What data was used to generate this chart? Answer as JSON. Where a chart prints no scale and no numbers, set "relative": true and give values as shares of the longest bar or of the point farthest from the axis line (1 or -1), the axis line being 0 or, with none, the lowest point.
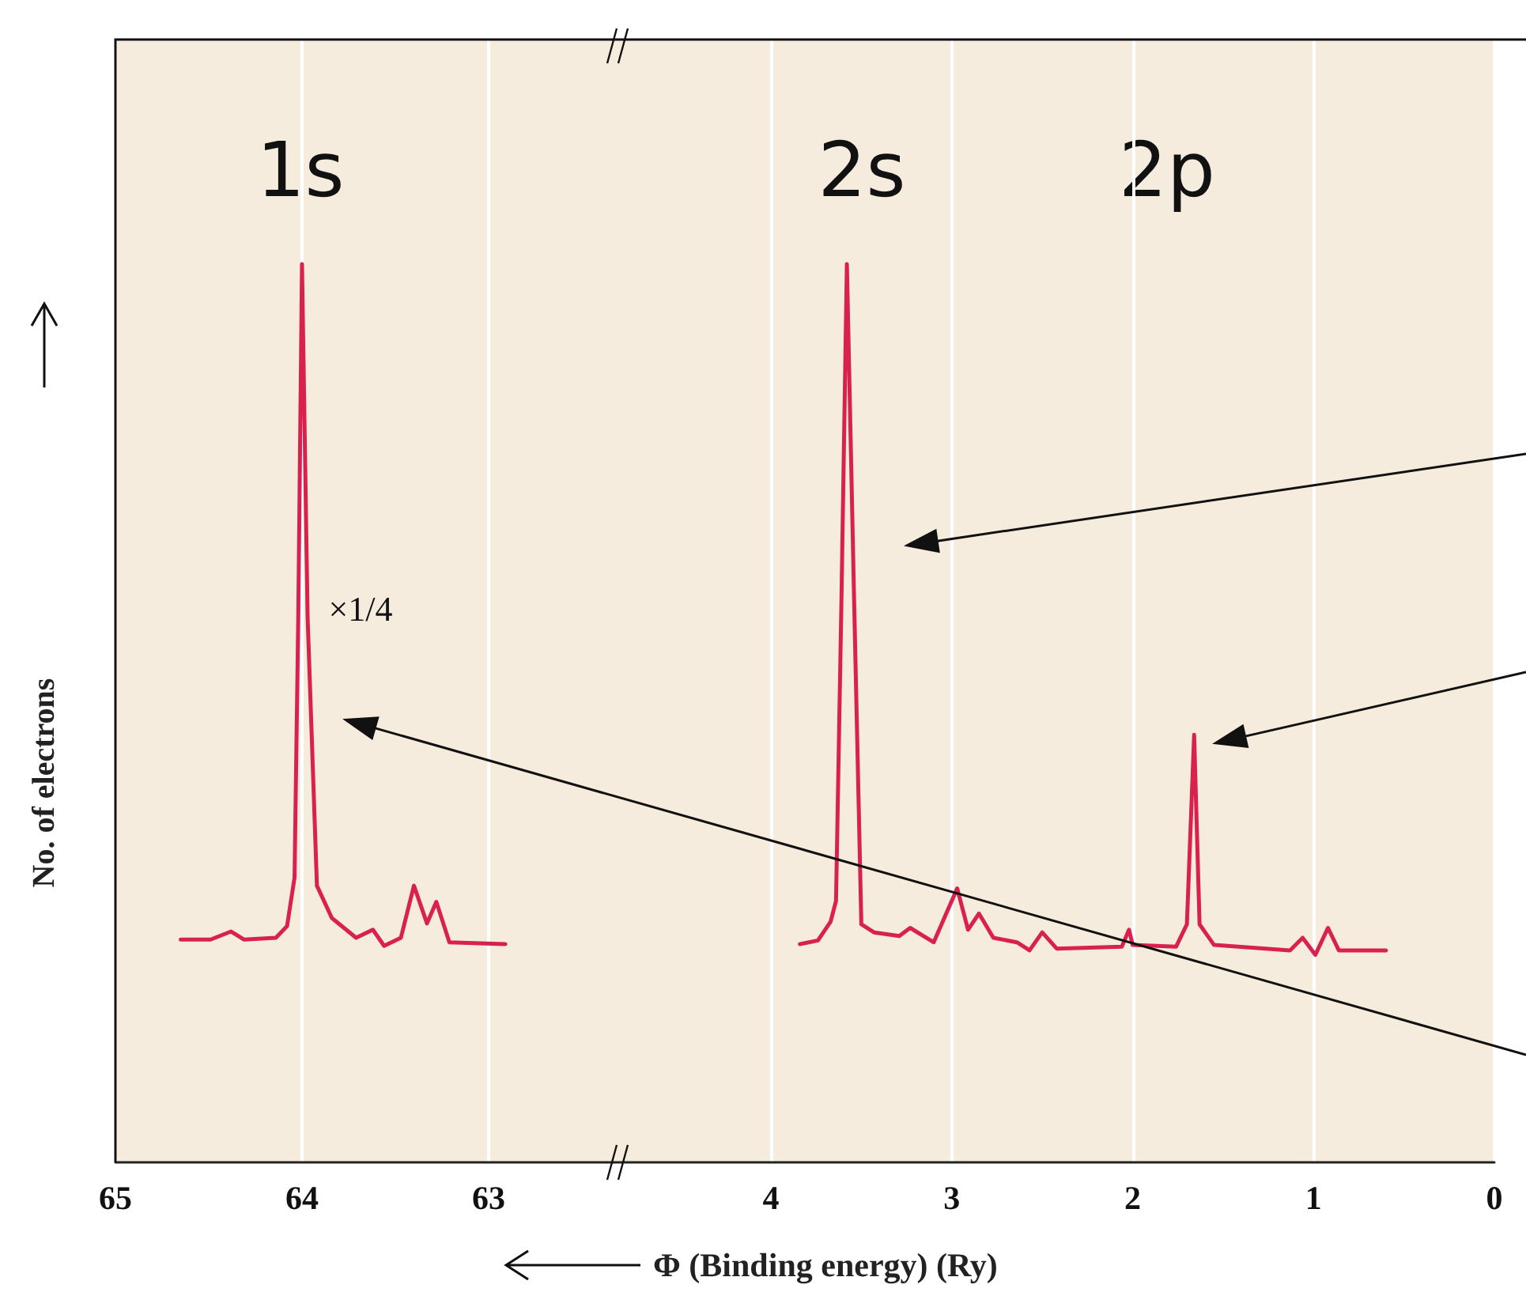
{
  "chart_data": [
    {
      "type": "line",
      "relative": true,
      "ylabel": "No. of electrons",
      "xlim": [
        65,
        62.33
      ],
      "xticks": [
        65,
        64,
        63
      ],
      "grid": "x",
      "tick_labels": "x",
      "annotations": [
        "1s",
        "×1/4"
      ],
      "series": [
        {
          "color": "#d92150",
          "x": [
            64.65,
            64.49,
            64.38,
            64.31,
            64.14,
            64.08,
            64.04,
            64.02,
            64.0,
            63.97,
            63.92,
            63.84,
            63.71,
            63.62,
            63.56,
            63.47,
            63.4,
            63.33,
            63.28,
            63.21,
            62.91
          ],
          "values": [
            0.248,
            0.248,
            0.257,
            0.248,
            0.25,
            0.263,
            0.317,
            0.607,
            1,
            0.607,
            0.308,
            0.272,
            0.25,
            0.259,
            0.241,
            0.25,
            0.308,
            0.266,
            0.29,
            0.245,
            0.243
          ]
        }
      ]
    },
    {
      "type": "line",
      "relative": true,
      "xlabel": "Φ (Binding energy) (Ry)",
      "xlim": [
        4.87,
        0
      ],
      "xticks": [
        4,
        3,
        2,
        1,
        0
      ],
      "grid": "x",
      "tick_labels": "x",
      "annotations": [
        "2s",
        "2p"
      ],
      "series": [
        {
          "color": "#d92150",
          "x": [
            3.84,
            3.74,
            3.67,
            3.64,
            3.61,
            3.58,
            3.54,
            3.5,
            3.43,
            3.29,
            3.23,
            3.1,
            2.97,
            2.91,
            2.85,
            2.77,
            2.64,
            2.57,
            2.5,
            2.42,
            2.06,
            2.02,
            2.0,
            1.76,
            1.7,
            1.66,
            1.63,
            1.55,
            1.13,
            1.06,
            0.99,
            0.92,
            0.86,
            0.6
          ],
          "values": [
            0.243,
            0.247,
            0.268,
            0.291,
            0.626,
            1,
            0.626,
            0.265,
            0.256,
            0.252,
            0.261,
            0.245,
            0.305,
            0.259,
            0.277,
            0.25,
            0.245,
            0.236,
            0.256,
            0.238,
            0.24,
            0.259,
            0.242,
            0.24,
            0.265,
            0.476,
            0.265,
            0.242,
            0.236,
            0.25,
            0.231,
            0.261,
            0.236,
            0.236
          ]
        }
      ]
    }
  ]
}
